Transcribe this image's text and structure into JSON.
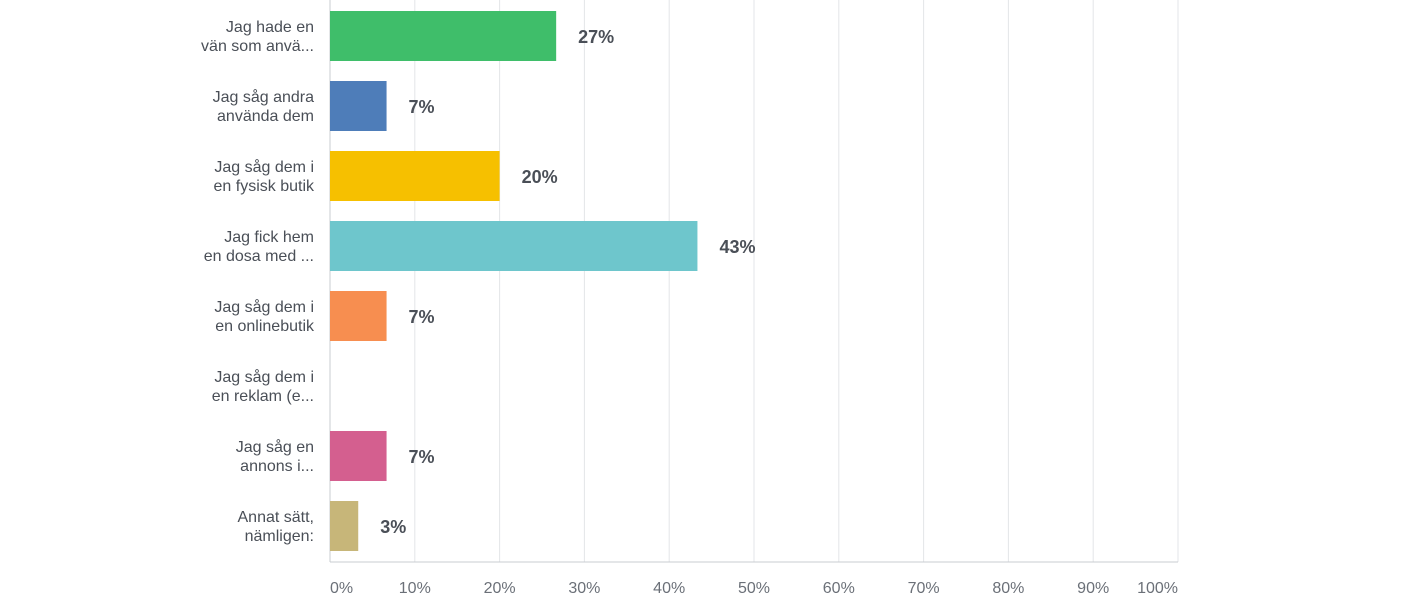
{
  "chart_data": {
    "type": "bar",
    "orientation": "horizontal",
    "categories": [
      [
        "Jag hade en",
        "vän som anvä..."
      ],
      [
        "Jag såg andra",
        "använda dem"
      ],
      [
        "Jag såg dem i",
        "en fysisk butik"
      ],
      [
        "Jag fick hem",
        "en dosa med ..."
      ],
      [
        "Jag såg dem i",
        "en onlinebutik"
      ],
      [
        "Jag såg dem i",
        "en reklam (e..."
      ],
      [
        "Jag såg en",
        "annons i..."
      ],
      [
        "Annat sätt,",
        "nämligen:"
      ]
    ],
    "values": [
      26.67,
      6.67,
      20.0,
      43.33,
      6.67,
      0,
      6.67,
      3.33
    ],
    "value_labels": [
      "27%",
      "7%",
      "20%",
      "43%",
      "7%",
      "",
      "7%",
      "3%"
    ],
    "colors": [
      "#3fbe6a",
      "#4e7db9",
      "#f6c000",
      "#6ec6cc",
      "#f78e50",
      "#a0a0a0",
      "#d45f8f",
      "#c7b679"
    ],
    "xlim": [
      0,
      100
    ],
    "x_ticks": [
      "0%",
      "10%",
      "20%",
      "30%",
      "40%",
      "50%",
      "60%",
      "70%",
      "80%",
      "90%",
      "100%"
    ],
    "grid": true,
    "title": "",
    "xlabel": "",
    "ylabel": ""
  }
}
